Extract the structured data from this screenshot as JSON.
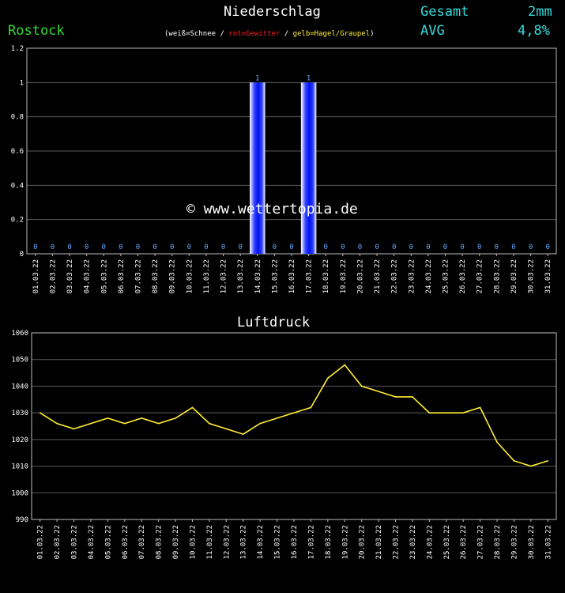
{
  "header": {
    "title": "Niederschlag",
    "city": "Rostock",
    "gesamt_label": "Gesamt",
    "gesamt_value": "2mm",
    "avg_label": "AVG",
    "avg_value": "4,8%",
    "legend": {
      "open": "(",
      "schnee": "weiß=Schnee",
      "sep1": " / ",
      "gewitter": "rot=Gewitter",
      "sep2": " / ",
      "hagel": "gelb=Hagel/Graupel",
      "close": ")"
    },
    "colors": {
      "gewitter": "#ff2222",
      "hagel": "#ffee33",
      "city": "#33dd33",
      "stats": "#33dddd"
    }
  },
  "watermark": "© www.wettertopia.de",
  "chart_data": [
    {
      "type": "bar",
      "title": "Niederschlag",
      "categories": [
        "01.03.22",
        "02.03.22",
        "03.03.22",
        "04.03.22",
        "05.03.22",
        "06.03.22",
        "07.03.22",
        "08.03.22",
        "09.03.22",
        "10.03.22",
        "11.03.22",
        "12.03.22",
        "13.03.22",
        "14.03.22",
        "15.03.22",
        "16.03.22",
        "17.03.22",
        "18.03.22",
        "19.03.22",
        "20.03.22",
        "21.03.22",
        "22.03.22",
        "23.03.22",
        "24.03.22",
        "25.03.22",
        "26.03.22",
        "27.03.22",
        "28.03.22",
        "29.03.22",
        "30.03.22",
        "31.03.22"
      ],
      "values": [
        0,
        0,
        0,
        0,
        0,
        0,
        0,
        0,
        0,
        0,
        0,
        0,
        0,
        1,
        0,
        0,
        1,
        0,
        0,
        0,
        0,
        0,
        0,
        0,
        0,
        0,
        0,
        0,
        0,
        0,
        0
      ],
      "ylim": [
        0,
        1.2
      ],
      "yticks": [
        "0",
        "0.2",
        "0.4",
        "0.6",
        "0.8",
        "1",
        "1.2"
      ],
      "grid": true,
      "bar_color": "#2233ff",
      "label_color": "#66aaff"
    },
    {
      "type": "line",
      "title": "Luftdruck",
      "categories": [
        "01.03.22",
        "02.03.22",
        "03.03.22",
        "04.03.22",
        "05.03.22",
        "06.03.22",
        "07.03.22",
        "08.03.22",
        "09.03.22",
        "10.03.22",
        "11.03.22",
        "12.03.22",
        "13.03.22",
        "14.03.22",
        "15.03.22",
        "16.03.22",
        "17.03.22",
        "18.03.22",
        "19.03.22",
        "20.03.22",
        "21.03.22",
        "22.03.22",
        "23.03.22",
        "24.03.22",
        "25.03.22",
        "26.03.22",
        "27.03.22",
        "28.03.22",
        "29.03.22",
        "30.03.22",
        "31.03.22"
      ],
      "values": [
        1030,
        1026,
        1024,
        1026,
        1028,
        1026,
        1028,
        1026,
        1028,
        1032,
        1026,
        1024,
        1022,
        1026,
        1028,
        1030,
        1032,
        1043,
        1048,
        1040,
        1038,
        1036,
        1036,
        1030,
        1030,
        1030,
        1032,
        1019,
        1012,
        1010,
        1012
      ],
      "ylim": [
        990,
        1060
      ],
      "yticks": [
        "990",
        "1000",
        "1010",
        "1020",
        "1030",
        "1040",
        "1050",
        "1060"
      ],
      "grid": true,
      "line_color": "#ffee33"
    }
  ]
}
